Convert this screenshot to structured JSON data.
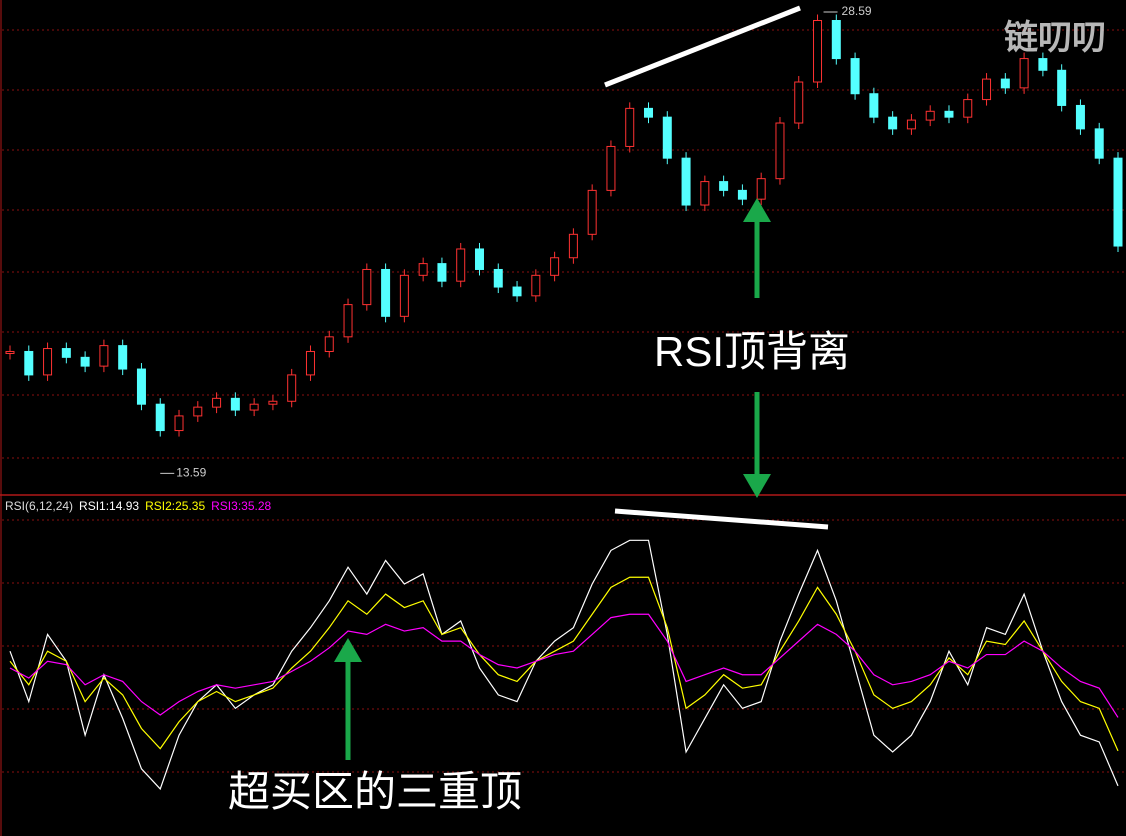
{
  "watermark": "链叨叨",
  "annotations": {
    "divergence": "RSI顶背离",
    "triple_top": "超买区的三重顶"
  },
  "chart_data": [
    {
      "type": "candle",
      "high": 28.59,
      "low": 13.59,
      "ylim": [
        12.1,
        29.0
      ],
      "values": [
        17.0,
        16.2,
        17.1,
        16.8,
        16.5,
        17.2,
        16.4,
        15.2,
        14.3,
        14.8,
        15.1,
        15.4,
        15.0,
        15.2,
        15.3,
        16.2,
        17.0,
        17.5,
        18.6,
        19.8,
        18.2,
        19.6,
        20.0,
        19.4,
        20.5,
        19.8,
        19.2,
        18.9,
        19.6,
        20.2,
        21.0,
        22.5,
        24.0,
        25.3,
        25.0,
        23.6,
        22.0,
        22.8,
        22.5,
        22.2,
        22.9,
        24.8,
        26.2,
        28.3,
        27.0,
        25.8,
        25.0,
        24.6,
        24.9,
        25.2,
        25.0,
        25.6,
        26.3,
        26.0,
        27.0,
        26.6,
        25.4,
        24.6,
        23.6,
        20.6
      ]
    },
    {
      "type": "line",
      "title": "RSI(6,12,24)",
      "ylim": [
        0,
        100
      ],
      "series": [
        {
          "name": "RSI1:14.93",
          "color": "#ffffff",
          "values": [
            55,
            40,
            60,
            52,
            30,
            48,
            35,
            20,
            14,
            30,
            40,
            45,
            38,
            42,
            45,
            55,
            62,
            70,
            80,
            72,
            82,
            75,
            78,
            60,
            64,
            50,
            42,
            40,
            52,
            58,
            62,
            75,
            85,
            88,
            88,
            60,
            25,
            35,
            45,
            38,
            40,
            58,
            72,
            85,
            70,
            50,
            30,
            25,
            30,
            40,
            55,
            45,
            62,
            60,
            72,
            55,
            40,
            30,
            28,
            14.93
          ]
        },
        {
          "name": "RSI2:25.35",
          "color": "#ffff00",
          "values": [
            52,
            45,
            55,
            52,
            40,
            47,
            42,
            32,
            26,
            34,
            40,
            43,
            40,
            42,
            44,
            50,
            55,
            62,
            70,
            66,
            72,
            68,
            70,
            60,
            62,
            54,
            48,
            46,
            52,
            55,
            58,
            66,
            74,
            77,
            77,
            62,
            38,
            42,
            48,
            44,
            45,
            55,
            64,
            74,
            66,
            55,
            42,
            38,
            40,
            45,
            53,
            48,
            58,
            57,
            64,
            55,
            46,
            40,
            38,
            25.35
          ]
        },
        {
          "name": "RSI3:35.28",
          "color": "#ff00ff",
          "values": [
            50,
            47,
            52,
            51,
            45,
            48,
            46,
            40,
            36,
            40,
            43,
            45,
            44,
            45,
            46,
            49,
            52,
            56,
            61,
            60,
            63,
            61,
            62,
            58,
            58,
            54,
            51,
            50,
            52,
            54,
            55,
            60,
            65,
            66,
            66,
            58,
            46,
            48,
            50,
            48,
            48,
            53,
            58,
            63,
            60,
            55,
            48,
            45,
            46,
            48,
            52,
            50,
            54,
            54,
            58,
            55,
            50,
            46,
            44,
            35.28
          ]
        }
      ]
    }
  ]
}
